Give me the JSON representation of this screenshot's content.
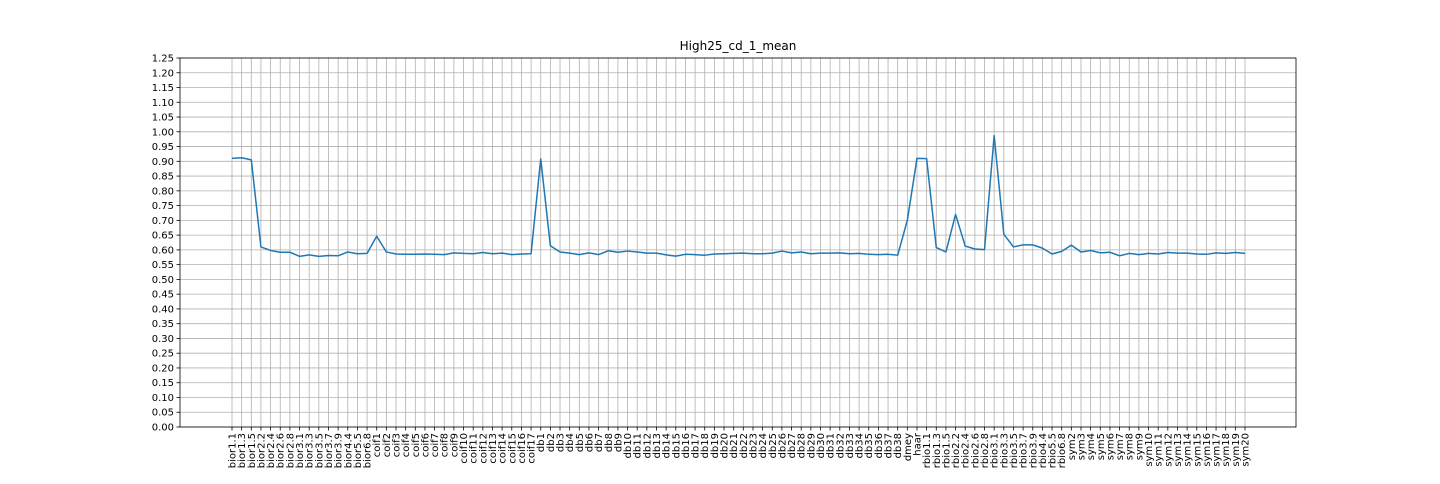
{
  "chart_data": {
    "type": "line",
    "title": "High25_cd_1_mean",
    "xlabel": "",
    "ylabel": "",
    "grid": true,
    "ylim": [
      0.0,
      1.25
    ],
    "yticks": [
      "0.00",
      "0.05",
      "0.10",
      "0.15",
      "0.20",
      "0.25",
      "0.30",
      "0.35",
      "0.40",
      "0.45",
      "0.50",
      "0.55",
      "0.60",
      "0.65",
      "0.70",
      "0.75",
      "0.80",
      "0.85",
      "0.90",
      "0.95",
      "1.00",
      "1.05",
      "1.10",
      "1.15",
      "1.20",
      "1.25"
    ],
    "line_color": "#1f77b4",
    "categories": [
      "bior1.1",
      "bior1.3",
      "bior1.5",
      "bior2.2",
      "bior2.4",
      "bior2.6",
      "bior2.8",
      "bior3.1",
      "bior3.3",
      "bior3.5",
      "bior3.7",
      "bior3.9",
      "bior4.4",
      "bior5.5",
      "bior6.8",
      "coif1",
      "coif2",
      "coif3",
      "coif4",
      "coif5",
      "coif6",
      "coif7",
      "coif8",
      "coif9",
      "coif10",
      "coif11",
      "coif12",
      "coif13",
      "coif14",
      "coif15",
      "coif16",
      "coif17",
      "db1",
      "db2",
      "db3",
      "db4",
      "db5",
      "db6",
      "db7",
      "db8",
      "db9",
      "db10",
      "db11",
      "db12",
      "db13",
      "db14",
      "db15",
      "db16",
      "db17",
      "db18",
      "db19",
      "db20",
      "db21",
      "db22",
      "db23",
      "db24",
      "db25",
      "db26",
      "db27",
      "db28",
      "db29",
      "db30",
      "db31",
      "db32",
      "db33",
      "db34",
      "db35",
      "db36",
      "db37",
      "db38",
      "dmey",
      "haar",
      "rbio1.1",
      "rbio1.3",
      "rbio1.5",
      "rbio2.2",
      "rbio2.4",
      "rbio2.6",
      "rbio2.8",
      "rbio3.1",
      "rbio3.3",
      "rbio3.5",
      "rbio3.7",
      "rbio3.9",
      "rbio4.4",
      "rbio5.5",
      "rbio6.8",
      "sym2",
      "sym3",
      "sym4",
      "sym5",
      "sym6",
      "sym7",
      "sym8",
      "sym9",
      "sym10",
      "sym11",
      "sym12",
      "sym13",
      "sym14",
      "sym15",
      "sym16",
      "sym17",
      "sym18",
      "sym19",
      "sym20"
    ],
    "series": [
      {
        "name": "",
        "values": [
          0.91,
          0.912,
          0.905,
          0.61,
          0.598,
          0.592,
          0.592,
          0.578,
          0.583,
          0.578,
          0.581,
          0.58,
          0.593,
          0.587,
          0.588,
          0.646,
          0.593,
          0.586,
          0.585,
          0.585,
          0.586,
          0.585,
          0.584,
          0.59,
          0.588,
          0.587,
          0.591,
          0.587,
          0.589,
          0.584,
          0.586,
          0.587,
          0.908,
          0.614,
          0.593,
          0.589,
          0.584,
          0.59,
          0.584,
          0.597,
          0.592,
          0.596,
          0.593,
          0.589,
          0.589,
          0.583,
          0.579,
          0.585,
          0.584,
          0.582,
          0.586,
          0.587,
          0.588,
          0.589,
          0.587,
          0.587,
          0.589,
          0.596,
          0.59,
          0.593,
          0.587,
          0.589,
          0.589,
          0.59,
          0.587,
          0.588,
          0.585,
          0.584,
          0.585,
          0.582,
          0.7,
          0.91,
          0.909,
          0.608,
          0.593,
          0.72,
          0.613,
          0.603,
          0.601,
          0.987,
          0.653,
          0.61,
          0.617,
          0.617,
          0.606,
          0.586,
          0.595,
          0.616,
          0.593,
          0.598,
          0.59,
          0.592,
          0.58,
          0.588,
          0.584,
          0.588,
          0.586,
          0.591,
          0.589,
          0.589,
          0.586,
          0.585,
          0.59,
          0.588,
          0.591,
          0.588
        ]
      }
    ]
  }
}
